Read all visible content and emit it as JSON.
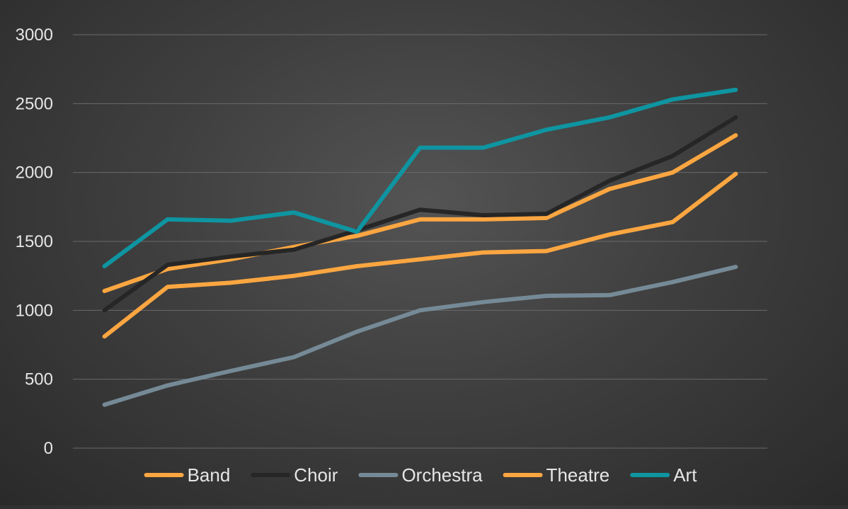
{
  "chart_data": {
    "type": "line",
    "title": "",
    "xlabel": "",
    "ylabel": "",
    "ylim": [
      0,
      3000
    ],
    "yticks": [
      0,
      500,
      1000,
      1500,
      2000,
      2500,
      3000
    ],
    "x": [
      1,
      2,
      3,
      4,
      5,
      6,
      7,
      8,
      9,
      10,
      11
    ],
    "grid": true,
    "legend": "bottom",
    "series": [
      {
        "name": "Band",
        "color": "#FBA641",
        "values": [
          1140,
          1300,
          1370,
          1460,
          1540,
          1660,
          1660,
          1670,
          1880,
          2000,
          2270
        ]
      },
      {
        "name": "Choir",
        "color": "#262626",
        "values": [
          1000,
          1330,
          1390,
          1440,
          1580,
          1730,
          1690,
          1700,
          1940,
          2120,
          2400
        ]
      },
      {
        "name": "Orchestra",
        "color": "#758A96",
        "values": [
          315,
          455,
          560,
          660,
          845,
          1000,
          1060,
          1105,
          1110,
          1205,
          1315
        ]
      },
      {
        "name": "Theatre",
        "color": "#FBA641",
        "values": [
          810,
          1170,
          1200,
          1250,
          1320,
          1370,
          1420,
          1430,
          1550,
          1640,
          1990
        ]
      },
      {
        "name": "Art",
        "color": "#0E95A1",
        "values": [
          1320,
          1660,
          1650,
          1710,
          1570,
          2180,
          2180,
          2310,
          2400,
          2530,
          2600
        ]
      }
    ]
  }
}
